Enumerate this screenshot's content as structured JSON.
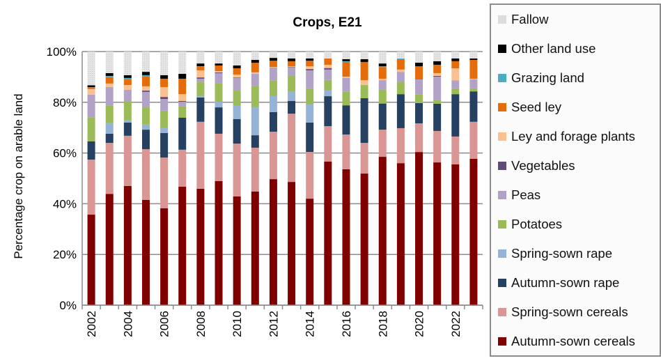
{
  "chart_data": {
    "type": "bar",
    "stacked": true,
    "title": "Crops, E21",
    "xlabel": "",
    "ylabel": "Percentage crop on arable land",
    "ylim": [
      0,
      100
    ],
    "yticks": [
      "0%",
      "20%",
      "40%",
      "60%",
      "80%",
      "100%"
    ],
    "grid": true,
    "legend_position": "right",
    "categories": [
      "2002",
      "2003",
      "2004",
      "2005",
      "2006",
      "2007",
      "2008",
      "2009",
      "2010",
      "2011",
      "2012",
      "2013",
      "2014",
      "2015",
      "2016",
      "2017",
      "2018",
      "2019",
      "2020",
      "2021",
      "2022",
      "2023"
    ],
    "xtick_labels": [
      "2002",
      "2004",
      "2006",
      "2008",
      "2010",
      "2012",
      "2014",
      "2016",
      "2018",
      "2020",
      "2022"
    ],
    "series": [
      {
        "name": "Autumn-sown cereals",
        "color": "#800000",
        "values": [
          35.7,
          43.9,
          47.0,
          41.5,
          38.2,
          46.7,
          45.9,
          48.9,
          42.9,
          44.8,
          49.7,
          48.6,
          42.0,
          56.6,
          53.6,
          51.9,
          58.5,
          56.0,
          60.4,
          56.3,
          55.5,
          57.7
        ]
      },
      {
        "name": "Spring-sown cereals",
        "color": "#D99694",
        "values": [
          21.7,
          20.1,
          19.8,
          20.0,
          20.0,
          14.6,
          26.4,
          18.7,
          20.8,
          17.3,
          18.7,
          26.9,
          18.4,
          14.0,
          13.7,
          12.1,
          10.7,
          13.8,
          11.3,
          12.4,
          11.0,
          14.6
        ]
      },
      {
        "name": "Autumn-sown rape",
        "color": "#254061",
        "values": [
          7.2,
          3.6,
          5.2,
          7.7,
          9.7,
          12.6,
          9.6,
          10.4,
          9.7,
          4.9,
          7.7,
          5.0,
          11.6,
          11.8,
          11.5,
          17.6,
          10.3,
          13.4,
          8.0,
          10.7,
          16.7,
          12.0
        ]
      },
      {
        "name": "Spring-sown rape",
        "color": "#95B3D7",
        "values": [
          0,
          4.2,
          0.9,
          2.0,
          1.9,
          0,
          0.5,
          2.2,
          5.2,
          11.0,
          6.3,
          3.6,
          7.1,
          2.2,
          0,
          0,
          0,
          0,
          0,
          0,
          0,
          0
        ]
      },
      {
        "name": "Potatoes",
        "color": "#9BBB59",
        "values": [
          9.5,
          7.0,
          7.3,
          6.8,
          6.9,
          4.5,
          5.5,
          7.4,
          6.0,
          8.5,
          6.1,
          6.4,
          6.4,
          4.2,
          5.3,
          5.2,
          5.5,
          4.7,
          3.3,
          1.4,
          2.3,
          1.2
        ]
      },
      {
        "name": "Peas",
        "color": "#B3A2C7",
        "values": [
          8.9,
          7.2,
          4.7,
          6.1,
          4.6,
          1.8,
          1.4,
          3.9,
          5.0,
          4.7,
          5.2,
          3.2,
          7.1,
          4.1,
          5.5,
          0,
          3.7,
          4.1,
          6.0,
          9.3,
          3.2,
          3.5
        ]
      },
      {
        "name": "Vegetables",
        "color": "#604A7B",
        "values": [
          0,
          0,
          0,
          0.5,
          0.8,
          0.3,
          0.5,
          0.3,
          0.2,
          0,
          0,
          0.2,
          0.5,
          0.6,
          0,
          0,
          0,
          0,
          0,
          0.3,
          0,
          0
        ]
      },
      {
        "name": "Ley and forage plants",
        "color": "#FAC090",
        "values": [
          2.2,
          1.4,
          1.9,
          1.7,
          3.9,
          2.7,
          2.8,
          0.5,
          1.1,
          0.6,
          0.2,
          0.3,
          1.1,
          1.3,
          0.5,
          1.9,
          0.6,
          0.9,
          0,
          1.1,
          4.7,
          0.3
        ]
      },
      {
        "name": "Seed ley",
        "color": "#E46C0A",
        "values": [
          0.5,
          2.5,
          2.2,
          3.8,
          3.3,
          6.1,
          1.4,
          2.2,
          2.5,
          3.8,
          2.5,
          2.0,
          2.2,
          2.5,
          5.8,
          7.2,
          4.6,
          4.1,
          5.2,
          3.3,
          2.8,
          7.4
        ]
      },
      {
        "name": "Grazing land",
        "color": "#4BACC6",
        "values": [
          0.3,
          0.5,
          0.6,
          0.6,
          0,
          0,
          0.2,
          0,
          0,
          0,
          0,
          0,
          0,
          0,
          0.3,
          0,
          0.3,
          0.3,
          0,
          0,
          0,
          0
        ]
      },
      {
        "name": "Other land use",
        "color": "#000000",
        "values": [
          0.7,
          1.1,
          1.1,
          1.3,
          1.4,
          1.9,
          1.1,
          0.8,
          1.1,
          1.1,
          1.1,
          1.1,
          0.9,
          0,
          0.8,
          1.1,
          1.1,
          0,
          1.4,
          1.4,
          1.1,
          0.6
        ]
      },
      {
        "name": "Fallow",
        "color": "#D9D9D9",
        "values": [
          13.3,
          8.5,
          9.3,
          8.0,
          9.3,
          8.8,
          4.7,
          4.7,
          5.5,
          3.3,
          2.5,
          2.7,
          2.7,
          2.7,
          3.0,
          3.0,
          4.7,
          2.7,
          4.4,
          3.8,
          2.7,
          2.7
        ]
      }
    ]
  }
}
